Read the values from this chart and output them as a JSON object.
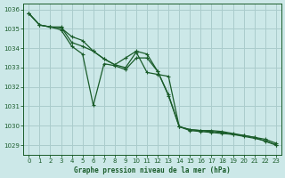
{
  "background_color": "#cce8e8",
  "plot_bg_color": "#cce8e8",
  "grid_color": "#aacccc",
  "line_color": "#1a5c2a",
  "xlabel": "Graphe pression niveau de la mer (hPa)",
  "xlim": [
    -0.5,
    23.5
  ],
  "ylim": [
    1028.5,
    1036.3
  ],
  "yticks": [
    1029,
    1030,
    1031,
    1032,
    1033,
    1034,
    1035,
    1036
  ],
  "xticks": [
    0,
    1,
    2,
    3,
    4,
    5,
    6,
    7,
    8,
    9,
    10,
    11,
    12,
    13,
    14,
    15,
    16,
    17,
    18,
    19,
    20,
    21,
    22,
    23
  ],
  "series1_y": [
    1035.8,
    1035.2,
    1035.1,
    1035.1,
    1034.3,
    1034.1,
    1033.85,
    1033.45,
    1033.15,
    1033.5,
    1033.85,
    1033.7,
    1032.8,
    1031.55,
    1029.95,
    1029.8,
    1029.75,
    1029.75,
    1029.7,
    1029.6,
    1029.5,
    1029.4,
    1029.3,
    1029.1
  ],
  "series2_y": [
    1035.8,
    1035.2,
    1035.1,
    1034.95,
    1034.1,
    1033.7,
    1031.05,
    1033.2,
    1033.1,
    1032.9,
    1033.5,
    1033.5,
    1032.8,
    1031.6,
    1029.95,
    1029.8,
    1029.75,
    1029.7,
    1029.65,
    1029.55,
    1029.5,
    1029.4,
    1029.2,
    1029.0
  ],
  "series3_y": [
    1035.8,
    1035.2,
    1035.1,
    1035.05,
    1034.6,
    1034.4,
    1033.85,
    1033.45,
    1033.15,
    1033.0,
    1033.8,
    1032.75,
    1032.65,
    1032.55,
    1029.95,
    1029.75,
    1029.7,
    1029.65,
    1029.6,
    1029.55,
    1029.45,
    1029.35,
    1029.22,
    1029.02
  ]
}
